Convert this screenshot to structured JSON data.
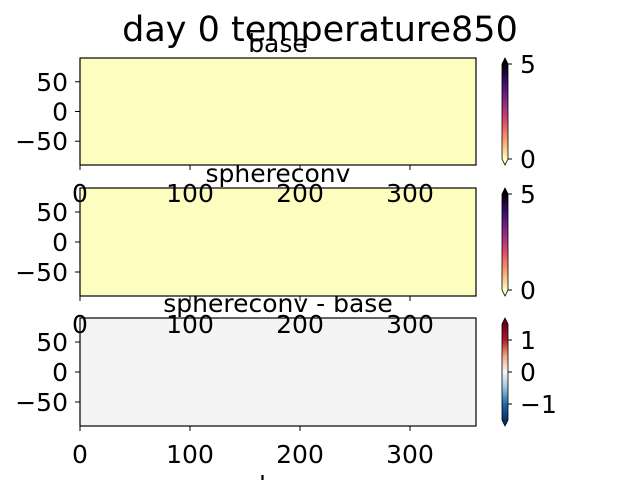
{
  "figure": {
    "suptitle": "day 0 temperature850",
    "xlabel": "lon"
  },
  "chart_data": [
    {
      "type": "heatmap",
      "title": "base",
      "xlim": [
        0,
        360
      ],
      "ylim": [
        -90,
        90
      ],
      "xticks": [
        0,
        100,
        200,
        300
      ],
      "xtick_labels": [
        "0",
        "100",
        "200",
        "300"
      ],
      "yticks": [
        50,
        0,
        -50
      ],
      "ytick_labels": [
        "50",
        "0",
        "−50"
      ],
      "fill_color": "#fcfdbf",
      "values": "uniform 0",
      "colorbar": {
        "cmap": "magma_r",
        "range": [
          0,
          5
        ],
        "ticks": [
          5,
          0
        ],
        "tick_labels": [
          "5",
          "0"
        ],
        "extend": "both",
        "stops": [
          "#fcfdbf",
          "#fc9f68",
          "#dd4968",
          "#8c2981",
          "#3b0f70",
          "#000004"
        ]
      }
    },
    {
      "type": "heatmap",
      "title": "sphereconv",
      "xlim": [
        0,
        360
      ],
      "ylim": [
        -90,
        90
      ],
      "xticks": [
        0,
        100,
        200,
        300
      ],
      "xtick_labels": [
        "0",
        "100",
        "200",
        "300"
      ],
      "yticks": [
        50,
        0,
        -50
      ],
      "ytick_labels": [
        "50",
        "0",
        "−50"
      ],
      "fill_color": "#fcfdbf",
      "values": "uniform 0",
      "colorbar": {
        "cmap": "magma_r",
        "range": [
          0,
          5
        ],
        "ticks": [
          5,
          0
        ],
        "tick_labels": [
          "5",
          "0"
        ],
        "extend": "both",
        "stops": [
          "#fcfdbf",
          "#fc9f68",
          "#dd4968",
          "#8c2981",
          "#3b0f70",
          "#000004"
        ]
      }
    },
    {
      "type": "heatmap",
      "title": "sphereconv - base",
      "xlim": [
        0,
        360
      ],
      "ylim": [
        -90,
        90
      ],
      "xticks": [
        0,
        100,
        200,
        300
      ],
      "xtick_labels": [
        "0",
        "100",
        "200",
        "300"
      ],
      "yticks": [
        50,
        0,
        -50
      ],
      "ytick_labels": [
        "50",
        "0",
        "−50"
      ],
      "fill_color": "#f4f4f4",
      "values": "uniform 0",
      "colorbar": {
        "cmap": "RdBu_r",
        "range": [
          -1.5,
          1.5
        ],
        "ticks": [
          1,
          0,
          -1
        ],
        "tick_labels": [
          "1",
          "0",
          "−1"
        ],
        "extend": "both",
        "stops": [
          "#053061",
          "#2166ac",
          "#92c5de",
          "#f7f7f7",
          "#f4a582",
          "#b2182b",
          "#67001f"
        ]
      }
    }
  ]
}
